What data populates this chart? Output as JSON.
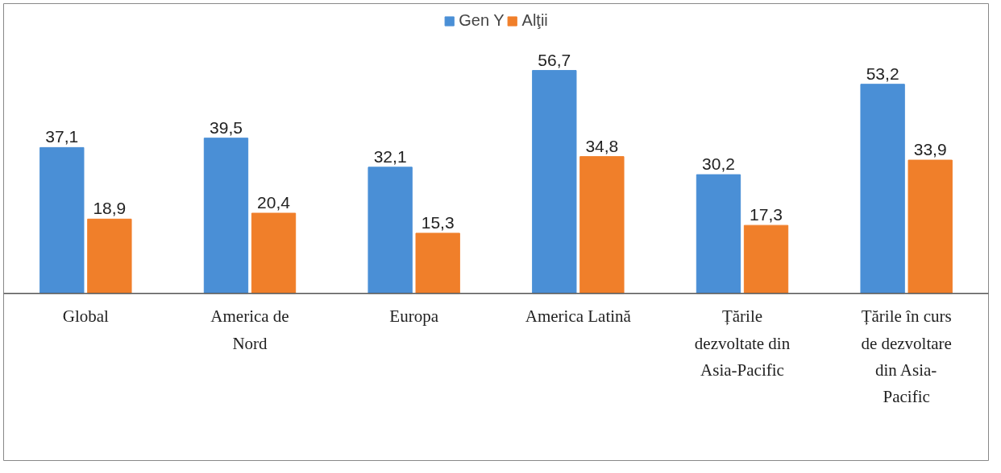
{
  "chart_data": {
    "type": "bar",
    "categories": [
      "Global",
      "America de Nord",
      "Europa",
      "America Latină",
      "Țările dezvoltate din Asia-Pacific",
      "Țările în curs de dezvoltare din Asia-Pacific"
    ],
    "series": [
      {
        "name": "Gen Y",
        "color": "#4a8fd6",
        "values": [
          37.1,
          39.5,
          32.1,
          56.7,
          30.2,
          53.2
        ],
        "value_labels": [
          "37,1",
          "39,5",
          "32,1",
          "56,7",
          "30,2",
          "53,2"
        ]
      },
      {
        "name": "Alţii",
        "color": "#f07f2a",
        "values": [
          18.9,
          20.4,
          15.3,
          34.8,
          17.3,
          33.9
        ],
        "value_labels": [
          "18,9",
          "20,4",
          "15,3",
          "34,8",
          "17,3",
          "33,9"
        ]
      }
    ],
    "legend": "top",
    "tick_labels": "x"
  }
}
